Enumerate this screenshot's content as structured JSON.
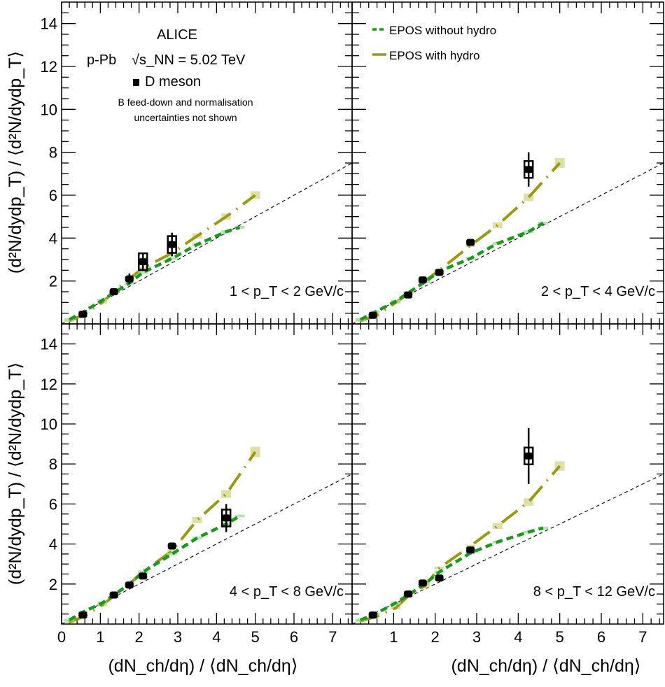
{
  "figure": {
    "y_axis_label": "(d²N/dydp_T) / ⟨d²N/dydp_T⟩",
    "x_axis_label": "(dN_ch/dη) / ⟨dN_ch/dη⟩",
    "experiment": "ALICE",
    "system": "p-Pb",
    "energy": "√s_NN = 5.02 TeV",
    "particle": "D meson",
    "note_line1": "B feed-down and normalisation",
    "note_line2": "uncertainties not shown",
    "legend": [
      {
        "label": "EPOS without hydro",
        "color": "#1a9a1a",
        "style": "dashed"
      },
      {
        "label": "EPOS with hydro",
        "color": "#9a9a10",
        "style": "long-dash"
      }
    ],
    "reference_line": "y = x",
    "colors": {
      "data": "#000000",
      "no_hydro": "#1a9a1a",
      "hydro": "#9a9a10",
      "band_hydro": "#d8d890",
      "band_nohydro": "#9ee09e"
    }
  },
  "chart_data": [
    {
      "type": "scatter",
      "panel": "top-left",
      "pt_label": "1 < p_T < 2 GeV/c",
      "xlim": [
        0,
        7.5
      ],
      "ylim": [
        0,
        15
      ],
      "xticks": [
        0,
        1,
        2,
        3,
        4,
        5,
        6,
        7
      ],
      "yticks": [
        2,
        4,
        6,
        8,
        10,
        12,
        14
      ],
      "data": {
        "name": "D meson",
        "x": [
          0.55,
          1.35,
          1.75,
          2.1,
          2.85
        ],
        "y": [
          0.45,
          1.5,
          2.1,
          2.9,
          3.7
        ],
        "yerr": [
          0.1,
          0.1,
          0.25,
          0.4,
          0.55
        ]
      },
      "series": [
        {
          "name": "EPOS with hydro",
          "x": [
            0.2,
            0.55,
            1.05,
            1.35,
            1.75,
            2.1,
            2.85,
            3.5,
            4.25,
            5.0
          ],
          "y": [
            0.15,
            0.4,
            1.0,
            1.5,
            2.1,
            2.6,
            3.3,
            4.1,
            5.0,
            6.0
          ]
        },
        {
          "name": "EPOS without hydro",
          "x": [
            0.2,
            0.55,
            1.05,
            1.35,
            1.75,
            2.1,
            2.85,
            3.5,
            4.25,
            4.6
          ],
          "y": [
            0.2,
            0.55,
            1.1,
            1.45,
            1.9,
            2.4,
            3.05,
            3.7,
            4.3,
            4.5
          ]
        }
      ]
    },
    {
      "type": "scatter",
      "panel": "top-right",
      "pt_label": "2 < p_T < 4 GeV/c",
      "xlim": [
        0,
        7.5
      ],
      "ylim": [
        0,
        15
      ],
      "xticks": [
        1,
        2,
        3,
        4,
        5,
        6,
        7
      ],
      "yticks": [
        2,
        4,
        6,
        8,
        10,
        12,
        14
      ],
      "data": {
        "name": "D meson",
        "x": [
          0.5,
          1.35,
          1.7,
          2.1,
          2.85,
          4.25
        ],
        "y": [
          0.4,
          1.35,
          2.05,
          2.4,
          3.8,
          7.2
        ],
        "yerr": [
          0.1,
          0.1,
          0.1,
          0.1,
          0.1,
          0.8
        ]
      },
      "series": [
        {
          "name": "EPOS with hydro",
          "x": [
            0.2,
            0.55,
            1.05,
            1.35,
            1.75,
            2.1,
            2.85,
            3.5,
            4.25,
            5.0
          ],
          "y": [
            0.15,
            0.35,
            1.0,
            1.4,
            2.0,
            2.5,
            3.65,
            4.6,
            5.9,
            7.5
          ]
        },
        {
          "name": "EPOS without hydro",
          "x": [
            0.2,
            0.55,
            1.05,
            1.35,
            1.75,
            2.1,
            2.85,
            3.5,
            4.25,
            4.6
          ],
          "y": [
            0.2,
            0.55,
            1.05,
            1.45,
            1.95,
            2.45,
            3.05,
            3.75,
            4.3,
            4.7
          ]
        }
      ]
    },
    {
      "type": "scatter",
      "panel": "bottom-left",
      "pt_label": "4 < p_T < 8 GeV/c",
      "xlim": [
        0,
        7.5
      ],
      "ylim": [
        0,
        15
      ],
      "xticks": [
        0,
        1,
        2,
        3,
        4,
        5,
        6,
        7
      ],
      "yticks": [
        2,
        4,
        6,
        8,
        10,
        12,
        14
      ],
      "data": {
        "name": "D meson",
        "x": [
          0.55,
          1.35,
          1.75,
          2.1,
          2.85,
          4.25
        ],
        "y": [
          0.45,
          1.45,
          1.95,
          2.4,
          3.9,
          5.3
        ],
        "yerr": [
          0.1,
          0.1,
          0.1,
          0.1,
          0.1,
          0.7
        ]
      },
      "series": [
        {
          "name": "EPOS with hydro",
          "x": [
            0.2,
            0.55,
            1.05,
            1.35,
            1.75,
            2.1,
            2.85,
            3.5,
            4.25,
            5.0
          ],
          "y": [
            0.1,
            0.35,
            0.95,
            1.4,
            2.0,
            2.6,
            3.65,
            5.2,
            6.5,
            8.6
          ]
        },
        {
          "name": "EPOS without hydro",
          "x": [
            0.2,
            0.55,
            1.05,
            1.35,
            1.75,
            2.1,
            2.85,
            3.5,
            4.25,
            4.6
          ],
          "y": [
            0.2,
            0.6,
            1.05,
            1.45,
            2.0,
            2.6,
            3.5,
            4.3,
            5.0,
            5.4
          ]
        }
      ]
    },
    {
      "type": "scatter",
      "panel": "bottom-right",
      "pt_label": "8 < p_T < 12 GeV/c",
      "xlim": [
        0,
        7.5
      ],
      "ylim": [
        0,
        15
      ],
      "xticks": [
        1,
        2,
        3,
        4,
        5,
        6,
        7
      ],
      "yticks": [
        2,
        4,
        6,
        8,
        10,
        12,
        14
      ],
      "data": {
        "name": "D meson",
        "x": [
          0.5,
          1.35,
          1.7,
          2.1,
          2.85,
          4.25
        ],
        "y": [
          0.45,
          1.5,
          2.05,
          2.3,
          3.7,
          8.4
        ],
        "yerr": [
          0.1,
          0.1,
          0.1,
          0.1,
          0.15,
          1.4
        ]
      },
      "series": [
        {
          "name": "EPOS with hydro",
          "x": [
            0.2,
            0.55,
            1.05,
            1.35,
            1.75,
            2.1,
            2.85,
            3.5,
            4.25,
            5.0
          ],
          "y": [
            0.15,
            0.35,
            0.8,
            1.4,
            1.9,
            2.8,
            3.9,
            4.9,
            6.1,
            7.9
          ]
        },
        {
          "name": "EPOS without hydro",
          "x": [
            0.2,
            0.55,
            1.05,
            1.35,
            1.75,
            2.1,
            2.85,
            3.5,
            4.25,
            4.6
          ],
          "y": [
            0.2,
            0.5,
            1.05,
            1.45,
            2.0,
            2.6,
            3.55,
            4.1,
            4.6,
            4.8
          ]
        }
      ]
    }
  ]
}
